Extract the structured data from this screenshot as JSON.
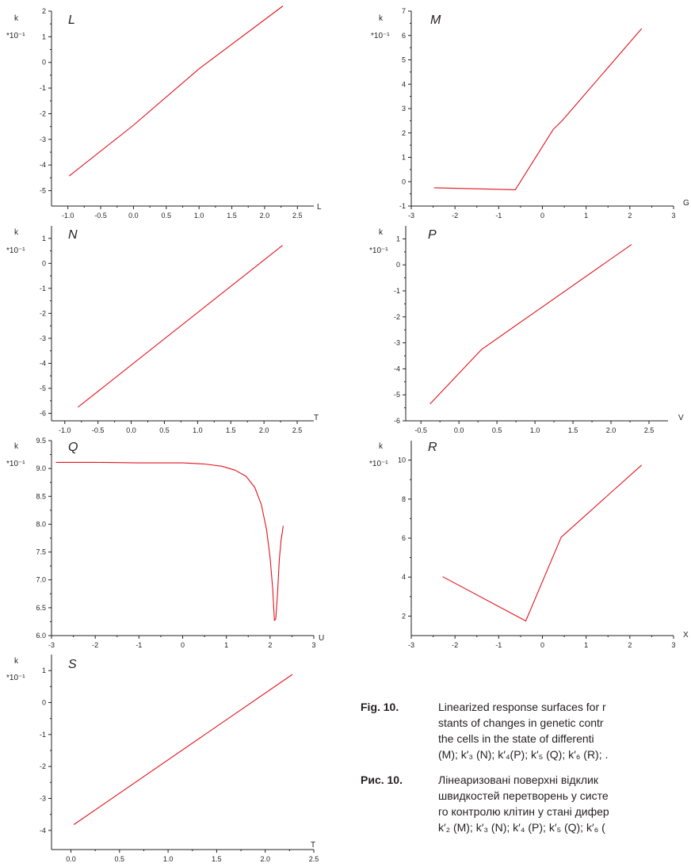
{
  "chart_data": [
    {
      "type": "line",
      "title": "L",
      "ylabel": "k",
      "yunit": "*10⁻¹",
      "xlabel": "L",
      "xlim": [
        -1.25,
        2.75
      ],
      "ylim": [
        -5.6,
        2.0
      ],
      "xticks": [
        "-1.0",
        "-0.5",
        "0.0",
        "0.5",
        "1.0",
        "1.5",
        "2.0",
        "2.5"
      ],
      "xtick_values": [
        -1.0,
        -0.5,
        0.0,
        0.5,
        1.0,
        1.5,
        2.0,
        2.5
      ],
      "yticks": [
        "-5",
        "-4",
        "-3",
        "-2",
        "-1",
        "0",
        "1",
        "2"
      ],
      "ytick_values": [
        -5,
        -4,
        -3,
        -2,
        -1,
        0,
        1,
        2
      ],
      "series": [
        {
          "x": [
            -0.98,
            0.0,
            1.0,
            2.28
          ],
          "y": [
            -4.43,
            -2.45,
            -0.25,
            2.2
          ]
        }
      ]
    },
    {
      "type": "line",
      "title": "M",
      "ylabel": "k",
      "yunit": "*10⁻¹",
      "xlabel": "G",
      "xlim": [
        -3.0,
        3.0
      ],
      "ylim": [
        -1.0,
        7.0
      ],
      "xticks": [
        "-3",
        "-2",
        "-1",
        "0",
        "1",
        "2",
        "3"
      ],
      "xtick_values": [
        -3,
        -2,
        -1,
        0,
        1,
        2,
        3
      ],
      "yticks": [
        "-1",
        "0",
        "1",
        "2",
        "3",
        "4",
        "5",
        "6",
        "7"
      ],
      "ytick_values": [
        -1,
        0,
        1,
        2,
        3,
        4,
        5,
        6,
        7
      ],
      "series": [
        {
          "x": [
            -2.48,
            -0.62,
            0.25,
            0.45,
            2.27
          ],
          "y": [
            -0.25,
            -0.33,
            2.15,
            2.5,
            6.28
          ]
        }
      ]
    },
    {
      "type": "line",
      "title": "N",
      "ylabel": "k",
      "yunit": "*10⁻¹",
      "xlabel": "T",
      "xlim": [
        -1.2,
        2.75
      ],
      "ylim": [
        -6.3,
        1.5
      ],
      "xticks": [
        "-1.0",
        "-0.5",
        "0.0",
        "0.5",
        "1.0",
        "1.5",
        "2.0",
        "2.5"
      ],
      "xtick_values": [
        -1.0,
        -0.5,
        0.0,
        0.5,
        1.0,
        1.5,
        2.0,
        2.5
      ],
      "yticks": [
        "-6",
        "-5",
        "-4",
        "-3",
        "-2",
        "-1",
        "0",
        "1"
      ],
      "ytick_values": [
        -6,
        -5,
        -4,
        -3,
        -2,
        -1,
        0,
        1
      ],
      "series": [
        {
          "x": [
            -0.8,
            2.28
          ],
          "y": [
            -5.75,
            0.72
          ]
        }
      ]
    },
    {
      "type": "line",
      "title": "P",
      "ylabel": "k",
      "yunit": "*10⁻¹",
      "xlabel": "V",
      "xlim": [
        -0.7,
        2.75
      ],
      "ylim": [
        -6.0,
        1.5
      ],
      "xticks": [
        "-0.5",
        "0.0",
        "0.5",
        "1.0",
        "1.5",
        "2.0",
        "2.5"
      ],
      "xtick_values": [
        -0.5,
        0.0,
        0.5,
        1.0,
        1.5,
        2.0,
        2.5
      ],
      "yticks": [
        "-6",
        "-5",
        "-4",
        "-3",
        "-2",
        "-1",
        "0",
        "1"
      ],
      "ytick_values": [
        -6,
        -5,
        -4,
        -3,
        -2,
        -1,
        0,
        1
      ],
      "series": [
        {
          "x": [
            -0.38,
            0.3,
            2.27
          ],
          "y": [
            -5.35,
            -3.25,
            0.78
          ]
        }
      ]
    },
    {
      "type": "line",
      "title": "Q",
      "ylabel": "k",
      "yunit": "*10⁻¹",
      "xlabel": "U",
      "xlim": [
        -3.0,
        3.0
      ],
      "ylim": [
        6.0,
        9.5
      ],
      "xticks": [
        "-3",
        "-2",
        "-1",
        "0",
        "1",
        "2",
        "3"
      ],
      "xtick_values": [
        -3,
        -2,
        -1,
        0,
        1,
        2,
        3
      ],
      "yticks": [
        "6.0",
        "6.5",
        "7.0",
        "7.5",
        "8.0",
        "8.5",
        "9.0",
        "9.5"
      ],
      "ytick_values": [
        6.0,
        6.5,
        7.0,
        7.5,
        8.0,
        8.5,
        9.0,
        9.5
      ],
      "series": [
        {
          "x": [
            -2.9,
            -2.0,
            -1.0,
            0.0,
            0.5,
            0.9,
            1.2,
            1.45,
            1.65,
            1.8,
            1.92,
            2.0,
            2.06,
            2.1,
            2.13,
            2.17,
            2.21,
            2.25,
            2.3
          ],
          "y": [
            9.11,
            9.11,
            9.1,
            9.1,
            9.08,
            9.04,
            8.97,
            8.86,
            8.66,
            8.35,
            7.9,
            7.4,
            6.85,
            6.27,
            6.3,
            6.75,
            7.35,
            7.7,
            7.97
          ]
        }
      ]
    },
    {
      "type": "line",
      "title": "R",
      "ylabel": "k",
      "yunit": "*10⁻¹",
      "xlabel": "X",
      "xlim": [
        -3.0,
        3.0
      ],
      "ylim": [
        1.0,
        11.0
      ],
      "xticks": [
        "-3",
        "-2",
        "-1",
        "0",
        "1",
        "2",
        "3"
      ],
      "xtick_values": [
        -3,
        -2,
        -1,
        0,
        1,
        2,
        3
      ],
      "yticks": [
        "2",
        "4",
        "6",
        "8",
        "10"
      ],
      "ytick_values": [
        2,
        4,
        6,
        8,
        10
      ],
      "series": [
        {
          "x": [
            -2.28,
            -0.38,
            0.43,
            2.27
          ],
          "y": [
            4.02,
            1.75,
            6.05,
            9.75
          ]
        }
      ]
    },
    {
      "type": "line",
      "title": "S",
      "ylabel": "k",
      "yunit": "*10⁻¹",
      "xlabel": "T",
      "xlim": [
        -0.2,
        2.5
      ],
      "ylim": [
        -4.6,
        1.5
      ],
      "xticks": [
        "0.0",
        "0.5",
        "1.0",
        "1.5",
        "2.0",
        "2.5"
      ],
      "xtick_values": [
        0.0,
        0.5,
        1.0,
        1.5,
        2.0,
        2.5
      ],
      "yticks": [
        "-4",
        "-3",
        "-2",
        "-1",
        "0",
        "1"
      ],
      "ytick_values": [
        -4,
        -3,
        -2,
        -1,
        0,
        1
      ],
      "series": [
        {
          "x": [
            0.03,
            2.28
          ],
          "y": [
            -3.82,
            0.88
          ]
        }
      ]
    }
  ],
  "caption": {
    "en_label": "Fig. 10.",
    "en_lines": [
      "Linearized response surfaces for r",
      "stants of changes in genetic contr",
      "the cells in the state of differenti",
      "(M); k′₃ (N); k′₄(P); k′₅ (Q); k′₆ (R); ."
    ],
    "uk_label": "Рис. 10.",
    "uk_lines": [
      "Лінеаризовані поверхні відклик",
      "швидкостей перетворень у систе",
      "го контролю клітин у стані дифер",
      "k′₂ (M); k′₃ (N); k′₄ (P); k′₅ (Q); k′₆ ("
    ]
  },
  "colors": {
    "line": "#e0141e",
    "axis": "#231f20"
  }
}
